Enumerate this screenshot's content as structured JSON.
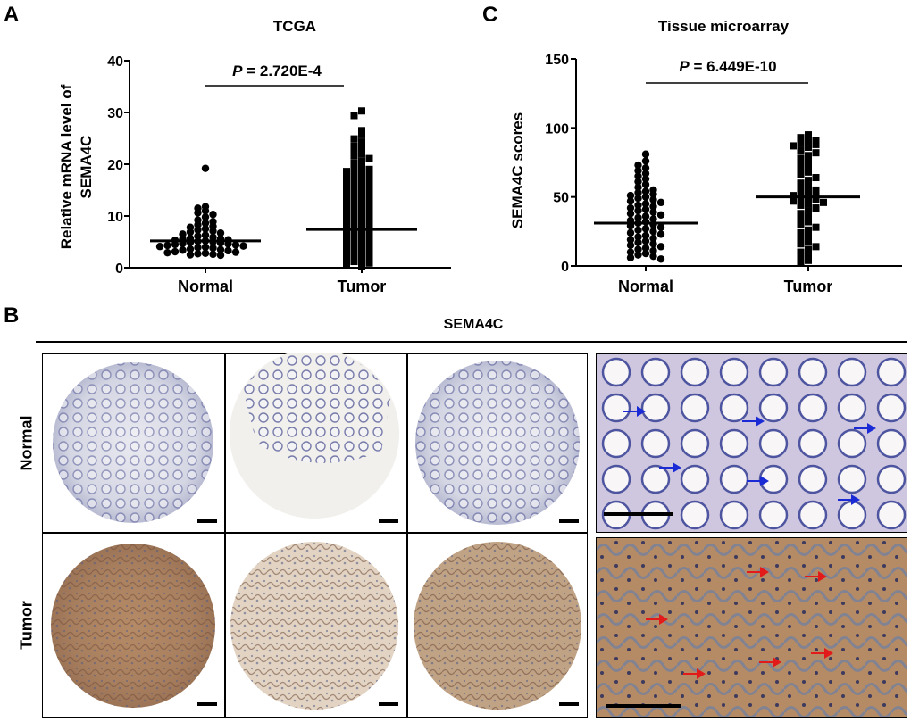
{
  "panels": {
    "A": "A",
    "B": "B",
    "C": "C"
  },
  "chart_data": [
    {
      "id": "A",
      "type": "scatter",
      "title": "TCGA",
      "ylabel_lines": [
        "Relative mRNA level of",
        "SEMA4C"
      ],
      "xlabel": "",
      "categories": [
        "Normal",
        "Tumor"
      ],
      "ylim": [
        0,
        40
      ],
      "yticks": [
        0,
        10,
        20,
        30,
        40
      ],
      "p_label": "P",
      "p_value": " = 2.720E-4",
      "series": [
        {
          "name": "Normal",
          "marker": "circle",
          "mean": 5.2,
          "values": [
            19.2,
            11.8,
            11.5,
            11.0,
            10.6,
            10.3,
            9.8,
            9.2,
            8.9,
            8.6,
            8.3,
            8.0,
            7.8,
            7.5,
            7.3,
            7.1,
            6.9,
            6.7,
            6.5,
            6.3,
            6.1,
            5.9,
            5.7,
            5.6,
            5.5,
            5.4,
            5.3,
            5.2,
            5.1,
            5.0,
            4.9,
            4.8,
            4.7,
            4.6,
            4.5,
            4.4,
            4.3,
            4.2,
            4.1,
            4.0,
            3.9,
            3.8,
            3.6,
            3.5,
            3.4,
            3.3,
            3.1,
            3.0,
            2.9,
            2.8,
            2.7,
            2.6,
            2.5,
            2.4
          ]
        },
        {
          "name": "Tumor",
          "marker": "square",
          "mean": 7.4,
          "values": [
            30.3,
            29.4,
            26.5,
            25.7,
            24.9,
            24.3,
            23.5,
            23.0,
            22.6,
            22.0,
            21.6,
            21.1,
            20.6,
            20.2,
            19.6,
            19.3,
            19.0,
            18.6,
            18.3,
            18.0,
            17.7,
            17.4,
            17.1,
            16.8,
            16.5,
            16.2,
            15.9,
            15.6,
            15.3,
            15.0,
            14.7,
            14.4,
            14.1,
            13.8,
            13.5,
            13.2,
            12.9,
            12.6,
            12.3,
            12.0,
            11.7,
            11.4,
            11.1,
            10.8,
            10.5,
            10.2,
            9.9,
            9.6,
            9.3,
            9.0,
            8.7,
            8.4,
            8.1,
            7.8,
            7.5,
            7.2,
            6.9,
            6.6,
            6.3,
            6.0,
            5.7,
            5.4,
            5.1,
            4.8,
            4.5,
            4.2,
            3.9,
            3.6,
            3.3,
            3.0,
            2.7,
            2.4,
            2.1,
            1.8,
            1.5,
            1.2,
            0.9,
            0.6,
            0.3
          ]
        }
      ]
    },
    {
      "id": "C",
      "type": "scatter",
      "title": "Tissue microarray",
      "ylabel_lines": [
        "SEMA4C scores"
      ],
      "xlabel": "",
      "categories": [
        "Normal",
        "Tumor"
      ],
      "ylim": [
        0,
        150
      ],
      "yticks": [
        0,
        50,
        100,
        150
      ],
      "p_label": "P",
      "p_value": " = 6.449E-10",
      "series": [
        {
          "name": "Normal",
          "marker": "circle",
          "mean": 31,
          "values": [
            81,
            76,
            73,
            71,
            69,
            67,
            65,
            63,
            61,
            59,
            57,
            55,
            54,
            53,
            52,
            51,
            50,
            49,
            48,
            47,
            46,
            45,
            44,
            43,
            42,
            41,
            40,
            39,
            38,
            37,
            36,
            35,
            34,
            33,
            32,
            31,
            30,
            29,
            28,
            27,
            26,
            25,
            24,
            23,
            22,
            21,
            20,
            19,
            18,
            17,
            16,
            15,
            14,
            13,
            12,
            11,
            10,
            9,
            8,
            7,
            6,
            5
          ]
        },
        {
          "name": "Tumor",
          "marker": "square",
          "mean": 50,
          "values": [
            95,
            93,
            91,
            90,
            89,
            88,
            87,
            86,
            84,
            82,
            80,
            78,
            76,
            74,
            72,
            70,
            68,
            66,
            64,
            62,
            60,
            58,
            56,
            55,
            54,
            53,
            52,
            51,
            50,
            49,
            48,
            47,
            46,
            45,
            44,
            42,
            40,
            38,
            36,
            34,
            32,
            30,
            28,
            26,
            24,
            22,
            20,
            18,
            16,
            14,
            12,
            10,
            8,
            6,
            4,
            2
          ]
        }
      ]
    }
  ],
  "panel_b": {
    "header": "SEMA4C",
    "row_labels": [
      "Normal",
      "Tumor"
    ]
  }
}
